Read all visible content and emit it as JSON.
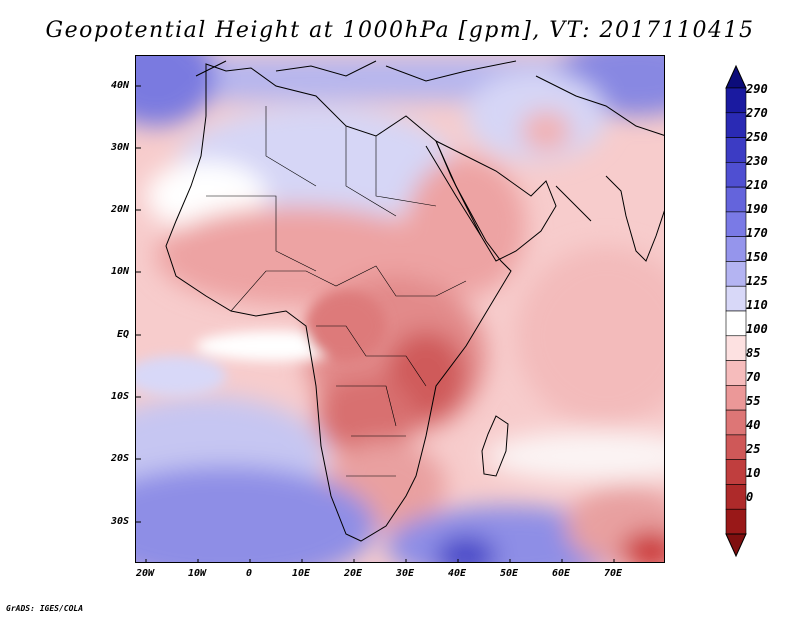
{
  "title": "Geopotential Height at 1000hPa [gpm], VT: 2017110415",
  "credit": "GrADS: IGES/COLA",
  "map": {
    "lat_labels": [
      "40N",
      "30N",
      "20N",
      "10N",
      "EQ",
      "10S",
      "20S",
      "30S"
    ],
    "lat_values": [
      40,
      30,
      20,
      10,
      0,
      -10,
      -20,
      -30
    ],
    "lon_labels": [
      "20W",
      "10W",
      "0",
      "10E",
      "20E",
      "30E",
      "40E",
      "50E",
      "60E",
      "70E"
    ],
    "lon_values": [
      -20,
      -10,
      0,
      10,
      20,
      30,
      40,
      50,
      60,
      70
    ],
    "lat_range": [
      -36,
      45
    ],
    "lon_range": [
      -22,
      80
    ]
  },
  "colorbar": {
    "labels": [
      "290",
      "270",
      "250",
      "230",
      "210",
      "190",
      "170",
      "150",
      "125",
      "110",
      "100",
      "85",
      "70",
      "55",
      "40",
      "25",
      "10",
      "0"
    ],
    "colors": [
      "#1a1aa0",
      "#2a2ab4",
      "#3c3cc4",
      "#4f4fd2",
      "#6464dc",
      "#7a7ae6",
      "#9595ec",
      "#b4b4f2",
      "#d8d8f8",
      "#ffffff",
      "#fde1e1",
      "#f6bcbc",
      "#eb9898",
      "#dd7676",
      "#cf5858",
      "#c03e3e",
      "#ae2a2a",
      "#991818"
    ],
    "top_arrow_color": "#0c0c7a",
    "bottom_arrow_color": "#7f0f0f"
  }
}
